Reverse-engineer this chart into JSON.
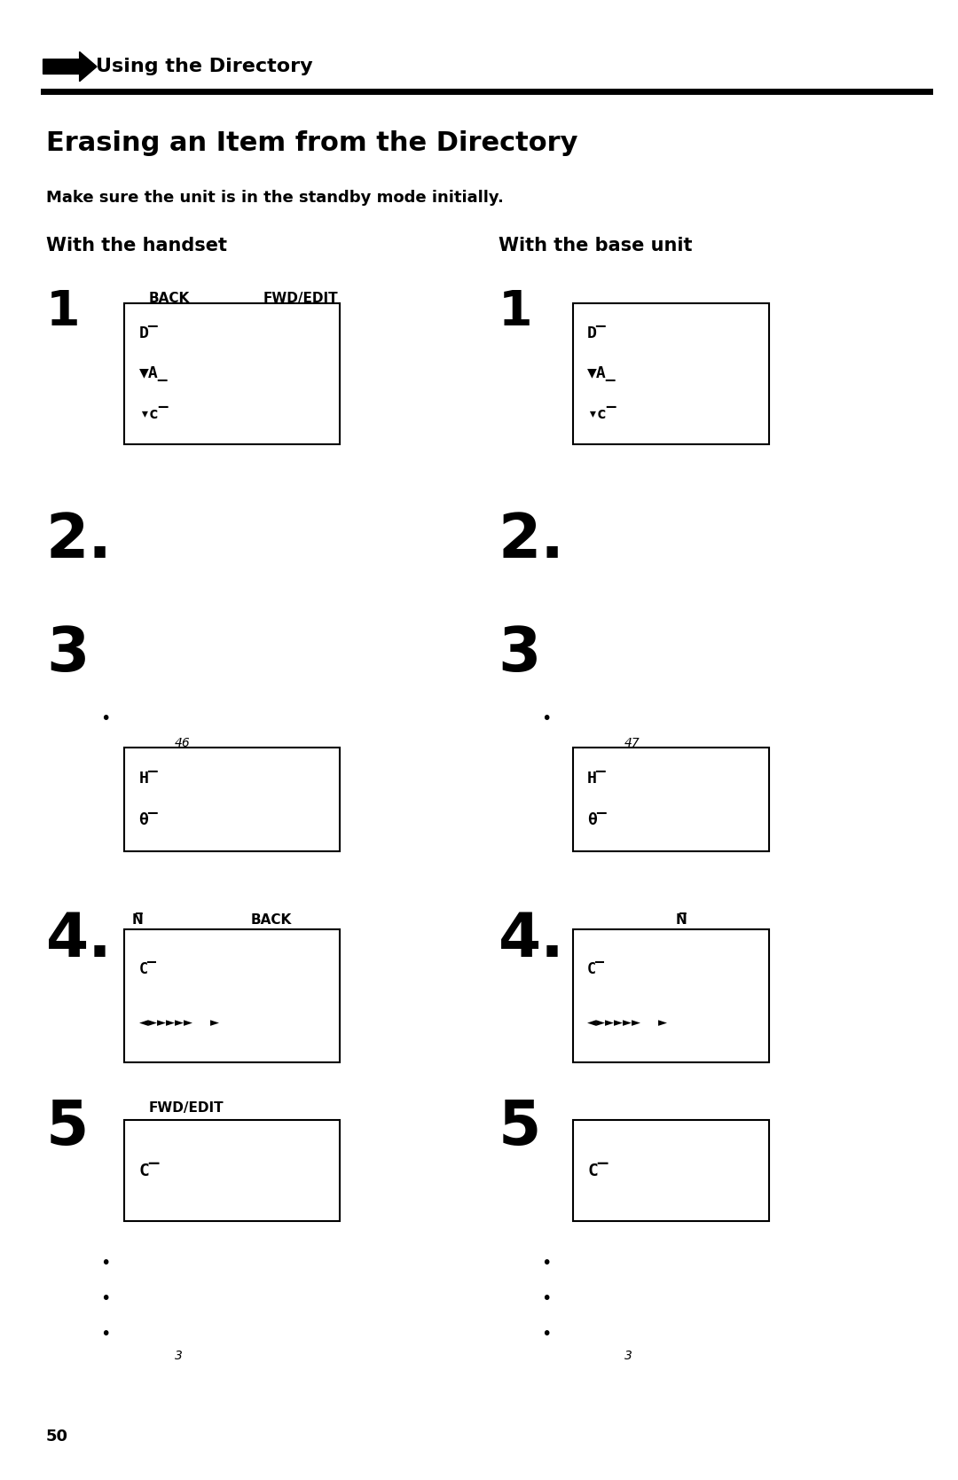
{
  "bg_color": "#ffffff",
  "page_width": 10.8,
  "page_height": 16.69,
  "arrow_header_text": "Using the Directory",
  "title": "Erasing an Item from the Directory",
  "subtitle": "Make sure the unit is in the standby mode initially.",
  "col1_header": "With the handset",
  "col2_header": "With the base unit",
  "step1_btn1": "BACK",
  "step1_btn2": "FWD/EDIT",
  "step4_btn_col1": "BACK",
  "step5_btn": "FWD/EDIT",
  "footnote_num_col1": "46",
  "footnote_num_col2": "47",
  "footnote_3_col1": "3",
  "footnote_3_col2": "3",
  "page_number": "50",
  "box1_display_lines": [
    "D̅",
    "▼A_",
    "▾c̅"
  ],
  "box_hq_lines": [
    "H̅",
    "θ̅"
  ],
  "box4_lines": [
    "C̅",
    "◄►►►►►  ►"
  ],
  "box5_lines": [
    "C̅"
  ],
  "n_overline": "N̅"
}
